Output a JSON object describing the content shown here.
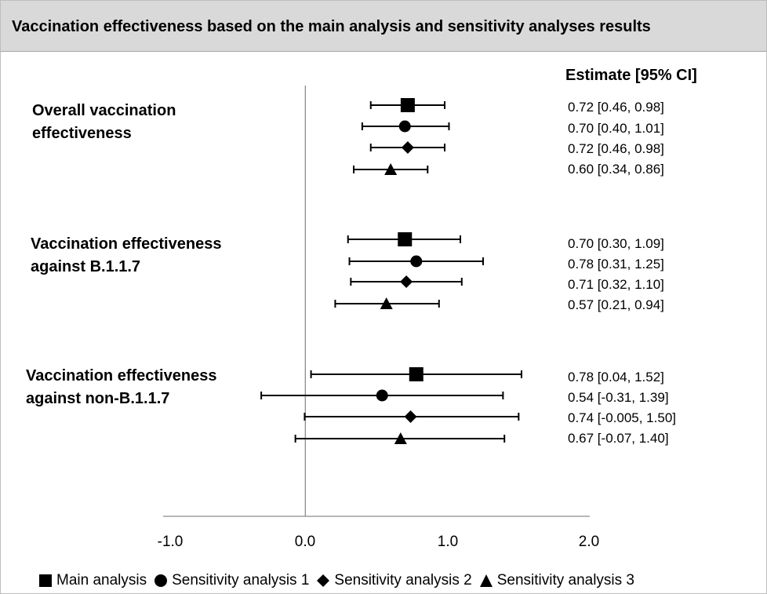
{
  "title": "Vaccination effectiveness based on the main analysis and sensitivity analyses results",
  "estimate_header": "Estimate [95% CI]",
  "chart_data": {
    "type": "scatter",
    "subtype": "forest-plot",
    "x_ticks": [
      "-1.0",
      "0.0",
      "1.0",
      "2.0"
    ],
    "xlim": [
      -1,
      2
    ],
    "reference_line_x": 0,
    "legend_position": "bottom",
    "series": [
      {
        "name": "Main analysis",
        "marker": "square"
      },
      {
        "name": "Sensitivity analysis 1",
        "marker": "circle"
      },
      {
        "name": "Sensitivity analysis 2",
        "marker": "diamond"
      },
      {
        "name": "Sensitivity analysis 3",
        "marker": "triangle"
      }
    ],
    "groups": [
      {
        "label_lines": [
          "Overall vaccination",
          "effectiveness"
        ],
        "rows": [
          {
            "series": 0,
            "estimate": 0.72,
            "lower": 0.46,
            "upper": 0.98,
            "text": "0.72 [0.46, 0.98]"
          },
          {
            "series": 1,
            "estimate": 0.7,
            "lower": 0.4,
            "upper": 1.01,
            "text": "0.70 [0.40, 1.01]"
          },
          {
            "series": 2,
            "estimate": 0.72,
            "lower": 0.46,
            "upper": 0.98,
            "text": "0.72 [0.46, 0.98]"
          },
          {
            "series": 3,
            "estimate": 0.6,
            "lower": 0.34,
            "upper": 0.86,
            "text": "0.60 [0.34, 0.86]"
          }
        ]
      },
      {
        "label_lines": [
          "Vaccination effectiveness",
          "against B.1.1.7"
        ],
        "rows": [
          {
            "series": 0,
            "estimate": 0.7,
            "lower": 0.3,
            "upper": 1.09,
            "text": "0.70 [0.30, 1.09]"
          },
          {
            "series": 1,
            "estimate": 0.78,
            "lower": 0.31,
            "upper": 1.25,
            "text": "0.78 [0.31, 1.25]"
          },
          {
            "series": 2,
            "estimate": 0.71,
            "lower": 0.32,
            "upper": 1.1,
            "text": "0.71 [0.32, 1.10]"
          },
          {
            "series": 3,
            "estimate": 0.57,
            "lower": 0.21,
            "upper": 0.94,
            "text": "0.57 [0.21, 0.94]"
          }
        ]
      },
      {
        "label_lines": [
          "Vaccination effectiveness",
          "against non-B.1.1.7"
        ],
        "rows": [
          {
            "series": 0,
            "estimate": 0.78,
            "lower": 0.04,
            "upper": 1.52,
            "text": "0.78 [0.04, 1.52]"
          },
          {
            "series": 1,
            "estimate": 0.54,
            "lower": -0.31,
            "upper": 1.39,
            "text": "0.54 [-0.31, 1.39]"
          },
          {
            "series": 2,
            "estimate": 0.74,
            "lower": -0.005,
            "upper": 1.5,
            "text": "0.74 [-0.005, 1.50]"
          },
          {
            "series": 3,
            "estimate": 0.67,
            "lower": -0.07,
            "upper": 1.4,
            "text": "0.67 [-0.07, 1.40]"
          }
        ]
      }
    ]
  }
}
